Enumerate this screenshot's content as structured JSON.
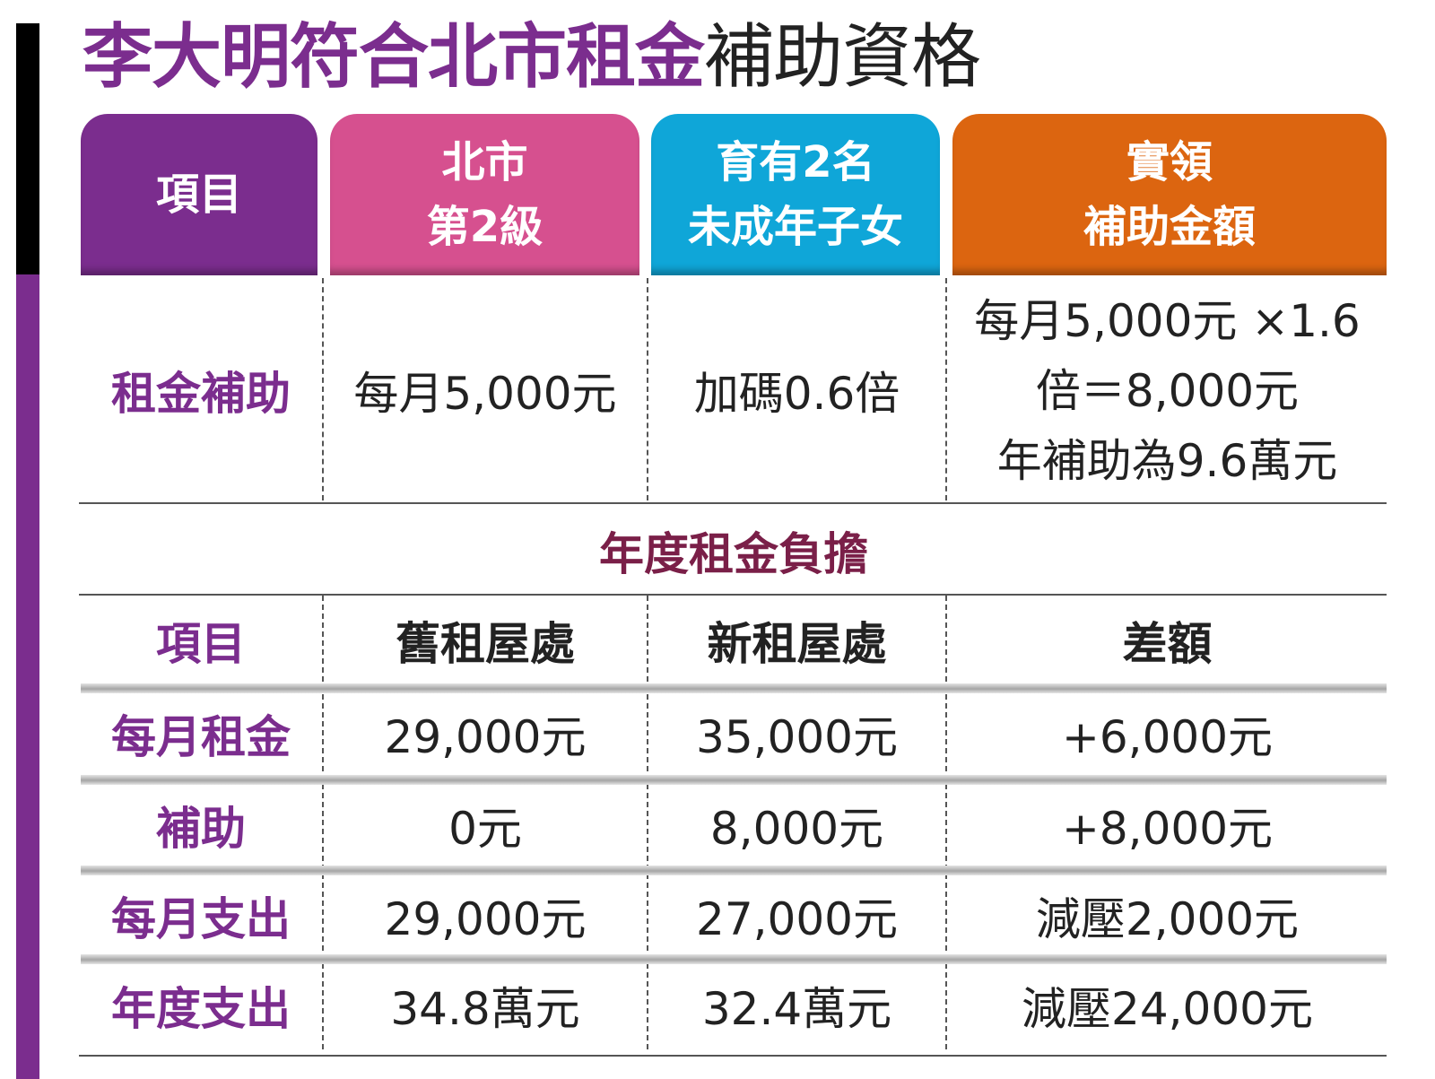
{
  "title": {
    "highlight": "李大明符合北市租金",
    "rest": "補助資格"
  },
  "header": {
    "col1": "項目",
    "col2": [
      "北市",
      "第2級"
    ],
    "col3": [
      "育有2名",
      "未成年子女"
    ],
    "col4": [
      "實領",
      "補助金額"
    ]
  },
  "subsidy_row": {
    "label": "租金補助",
    "col2": "每月5,000元",
    "col3": "加碼0.6倍",
    "col4": [
      "每月5,000元 ×1.6",
      "倍＝8,000元",
      "年補助為9.6萬元"
    ]
  },
  "section_title": "年度租金負擔",
  "burden_table": {
    "headers": [
      "項目",
      "舊租屋處",
      "新租屋處",
      "差額"
    ],
    "rows": [
      [
        "每月租金",
        "29,000元",
        "35,000元",
        "+6,000元"
      ],
      [
        "補助",
        "0元",
        "8,000元",
        "+8,000元"
      ],
      [
        "每月支出",
        "29,000元",
        "27,000元",
        "減壓2,000元"
      ],
      [
        "年度支出",
        "34.8萬元",
        "32.4萬元",
        "減壓24,000元"
      ]
    ]
  },
  "colors": {
    "purple": "#7b2d8e",
    "pink": "#d6508f",
    "cyan": "#0fa6d8",
    "orange": "#dc6510",
    "section_title": "#7a1f48"
  }
}
